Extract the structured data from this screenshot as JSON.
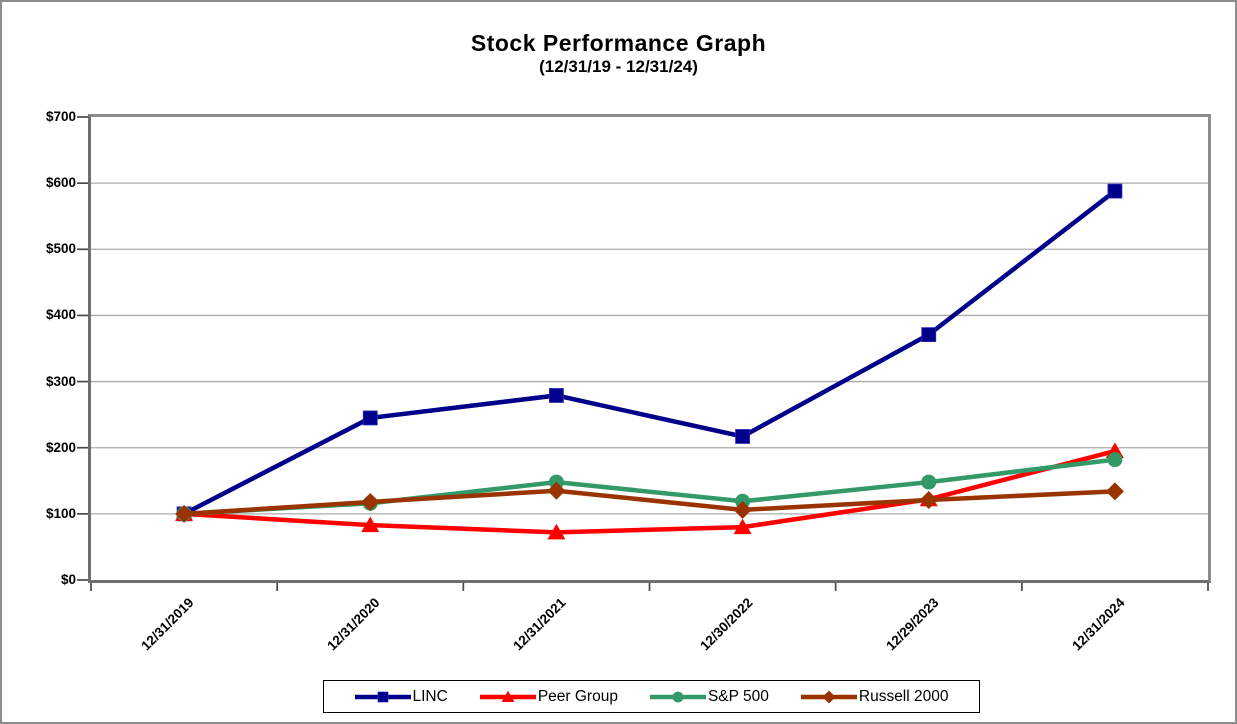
{
  "title": "Stock Performance Graph",
  "subtitle": "(12/31/19 - 12/31/24)",
  "chart_data": {
    "type": "line",
    "title": "Stock Performance Graph",
    "subtitle": "(12/31/19 - 12/31/24)",
    "categories": [
      "12/31/2019",
      "12/31/2020",
      "12/31/2021",
      "12/30/2022",
      "12/29/2023",
      "12/31/2024"
    ],
    "series": [
      {
        "name": "LINC",
        "color": "#00008B",
        "marker": "square",
        "values": [
          100,
          245,
          279,
          217,
          371,
          588
        ]
      },
      {
        "name": "Peer Group",
        "color": "#FF0000",
        "marker": "triangle",
        "values": [
          100,
          83,
          72,
          80,
          122,
          195
        ]
      },
      {
        "name": "S&P 500",
        "color": "#339966",
        "marker": "circle",
        "values": [
          100,
          116,
          148,
          119,
          148,
          182
        ]
      },
      {
        "name": "Russell 2000",
        "color": "#993300",
        "marker": "diamond",
        "values": [
          100,
          118,
          135,
          106,
          121,
          134
        ]
      }
    ],
    "ylim": [
      0,
      700
    ],
    "ytick_step": 100,
    "ytick_labels": [
      "$0",
      "$100",
      "$200",
      "$300",
      "$400",
      "$500",
      "$600",
      "$700"
    ],
    "grid": "horizontal",
    "gridline_color": "#ABABAB",
    "legend_position": "bottom"
  }
}
